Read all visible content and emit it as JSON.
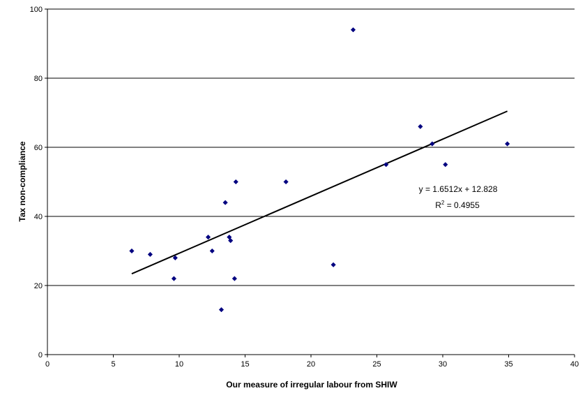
{
  "chart_data": {
    "type": "scatter",
    "title": "",
    "xlabel": "Our measure of irregular labour from SHIW",
    "ylabel": "Tax non-compliance",
    "xlim": [
      0,
      40
    ],
    "ylim": [
      0,
      100
    ],
    "x_ticks": [
      "0",
      "5",
      "10",
      "15",
      "20",
      "25",
      "30",
      "35",
      "40"
    ],
    "y_ticks": [
      "0",
      "20",
      "40",
      "60",
      "80",
      "100"
    ],
    "grid": "horizontal",
    "marker_color": "#000080",
    "points": [
      {
        "x": 6.4,
        "y": 30
      },
      {
        "x": 7.8,
        "y": 29
      },
      {
        "x": 9.6,
        "y": 22
      },
      {
        "x": 9.7,
        "y": 28
      },
      {
        "x": 12.2,
        "y": 34
      },
      {
        "x": 12.5,
        "y": 30
      },
      {
        "x": 13.2,
        "y": 13
      },
      {
        "x": 13.5,
        "y": 44
      },
      {
        "x": 13.8,
        "y": 34
      },
      {
        "x": 13.9,
        "y": 33
      },
      {
        "x": 14.2,
        "y": 22
      },
      {
        "x": 14.3,
        "y": 50
      },
      {
        "x": 18.1,
        "y": 50
      },
      {
        "x": 21.7,
        "y": 26
      },
      {
        "x": 23.2,
        "y": 94
      },
      {
        "x": 25.7,
        "y": 55
      },
      {
        "x": 28.3,
        "y": 66
      },
      {
        "x": 29.2,
        "y": 61
      },
      {
        "x": 30.2,
        "y": 55
      },
      {
        "x": 34.9,
        "y": 61
      }
    ],
    "trendline": {
      "slope": 1.6512,
      "intercept": 12.828,
      "x_start": 6.4,
      "x_end": 34.9,
      "equation_label": "y = 1.6512x + 12.828",
      "r2_prefix": "R",
      "r2_sup": "2",
      "r2_value": " = 0.4955"
    }
  }
}
